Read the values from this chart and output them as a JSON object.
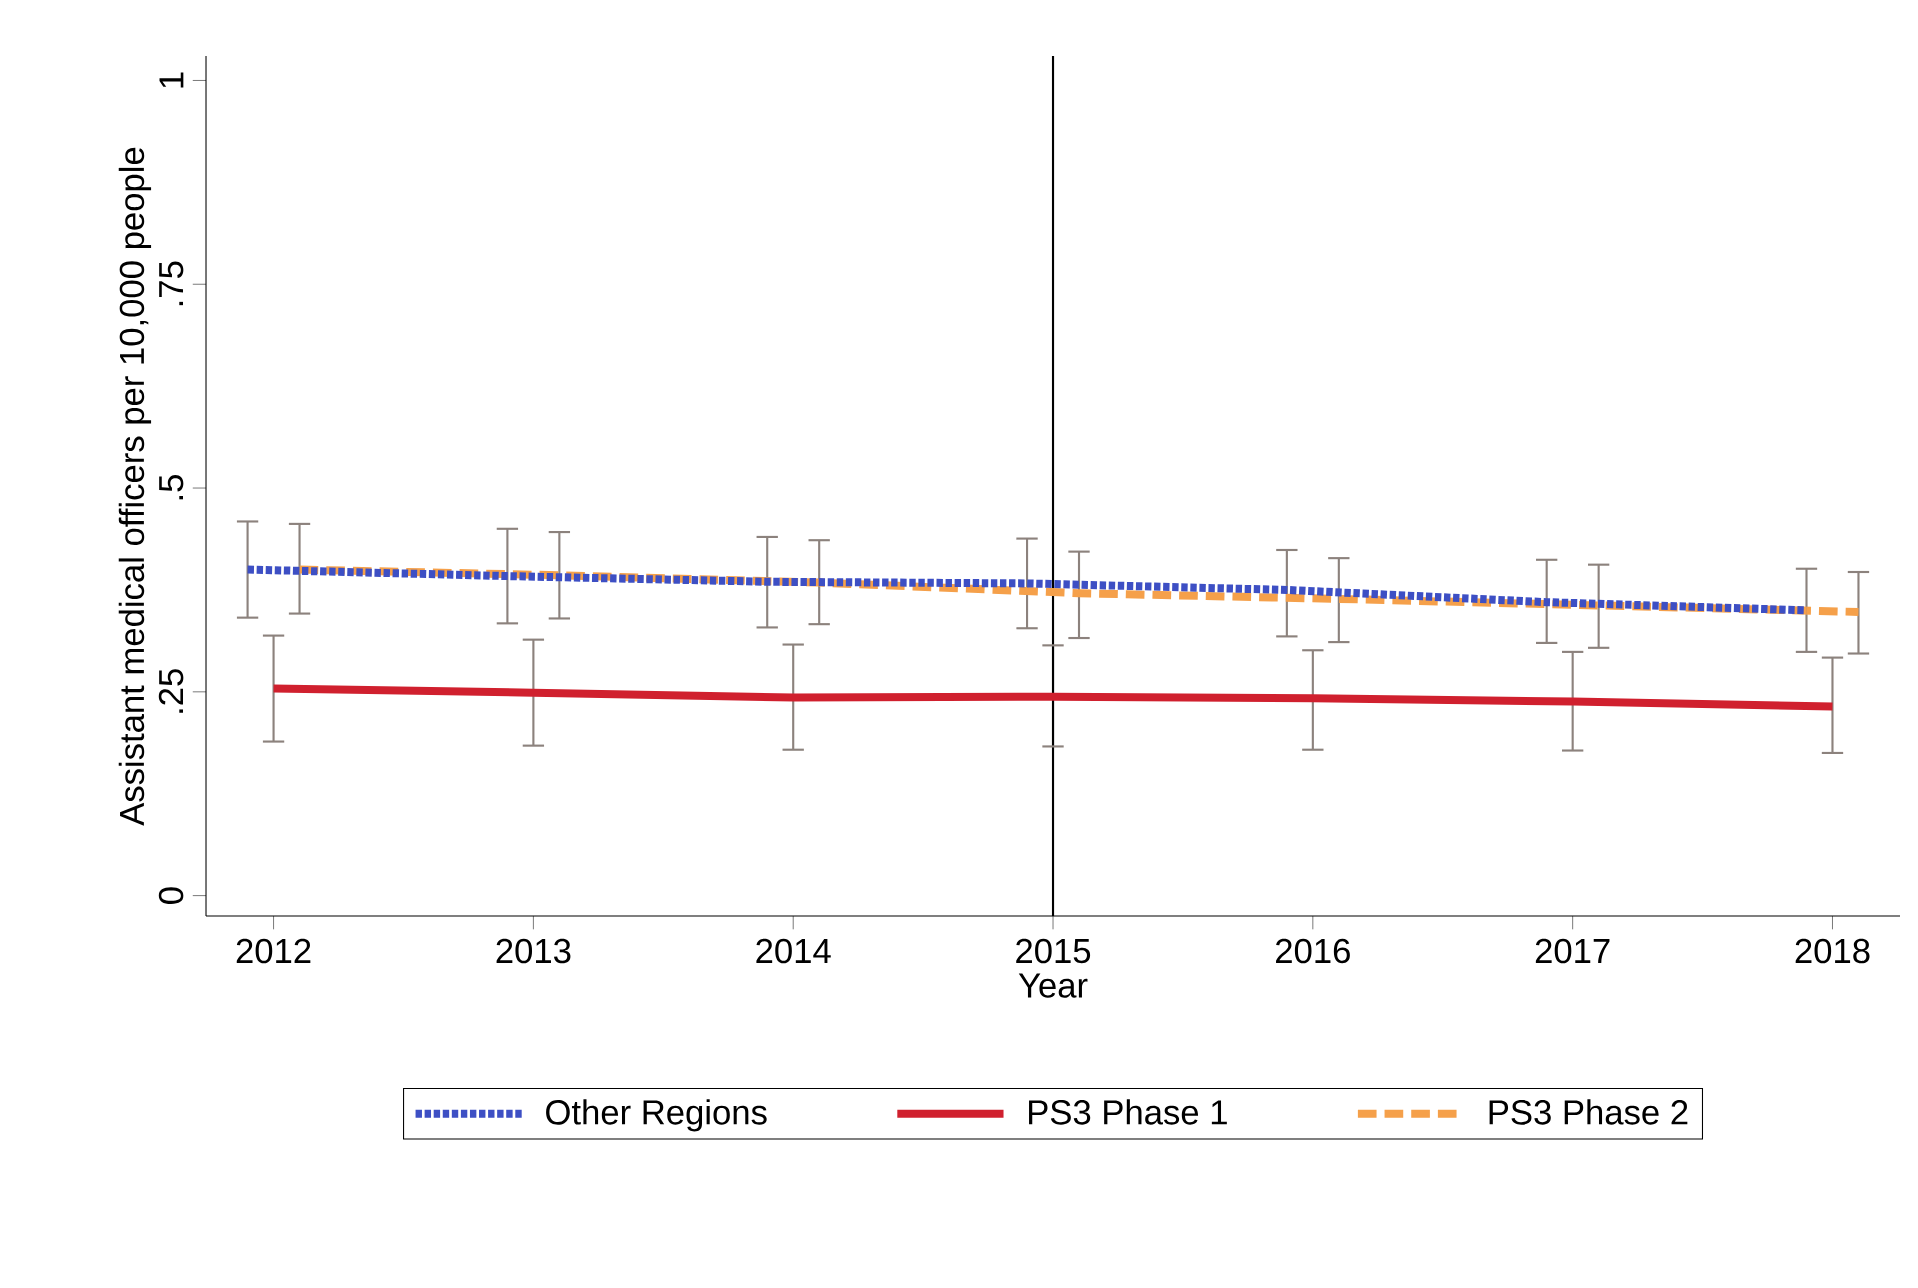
{
  "chart_data": {
    "type": "line",
    "xlabel": "Year",
    "ylabel": "Assistant medical officers per 10,000 people",
    "xlim": [
      2011.74,
      2018.26
    ],
    "xticks": [
      2012,
      2013,
      2014,
      2015,
      2016,
      2017,
      2018
    ],
    "ylim": [
      -0.025,
      1.03
    ],
    "yticks": [
      0,
      {
        "value": 0.25,
        "label": ".25"
      },
      {
        "value": 0.5,
        "label": ".5"
      },
      {
        "value": 0.75,
        "label": ".75"
      },
      1
    ],
    "series": [
      {
        "name": "Other Regions",
        "color": "#3d4fc4",
        "line_style": "dotted",
        "x": [
          2011.9,
          2012.9,
          2013.9,
          2014.9,
          2015.9,
          2016.9,
          2017.9
        ],
        "values": [
          0.4,
          0.392,
          0.385,
          0.383,
          0.375,
          0.36,
          0.35
        ],
        "errors": [
          [
            0.341,
            0.459
          ],
          [
            0.334,
            0.45
          ],
          [
            0.329,
            0.44
          ],
          [
            0.328,
            0.438
          ],
          [
            0.318,
            0.424
          ],
          [
            0.31,
            0.412
          ],
          [
            0.299,
            0.401
          ]
        ]
      },
      {
        "name": "PS3 Phase 1",
        "color": "#d0202e",
        "line_style": "solid",
        "x": [
          2012,
          2013,
          2014,
          2015,
          2016,
          2017,
          2018
        ],
        "values": [
          0.254,
          0.249,
          0.243,
          0.244,
          0.242,
          0.238,
          0.232
        ],
        "errors": [
          [
            0.189,
            0.319
          ],
          [
            0.184,
            0.314
          ],
          [
            0.179,
            0.308
          ],
          [
            0.183,
            0.307
          ],
          [
            0.179,
            0.301
          ],
          [
            0.178,
            0.299
          ],
          [
            0.175,
            0.292
          ]
        ]
      },
      {
        "name": "PS3 Phase 2",
        "color": "#f5a04a",
        "line_style": "dashed",
        "x": [
          2012.1,
          2013.1,
          2014.1,
          2015.1,
          2016.1,
          2017.1,
          2018.1
        ],
        "values": [
          0.4,
          0.393,
          0.384,
          0.371,
          0.364,
          0.356,
          0.348
        ],
        "errors": [
          [
            0.346,
            0.456
          ],
          [
            0.34,
            0.446
          ],
          [
            0.333,
            0.436
          ],
          [
            0.316,
            0.422
          ],
          [
            0.311,
            0.414
          ],
          [
            0.304,
            0.406
          ],
          [
            0.297,
            0.397
          ]
        ]
      }
    ],
    "ref_lines": [
      {
        "axis": "x",
        "value": 2015,
        "color": "#000000"
      }
    ],
    "grid": false,
    "legend": "bottom",
    "marker": "none"
  }
}
